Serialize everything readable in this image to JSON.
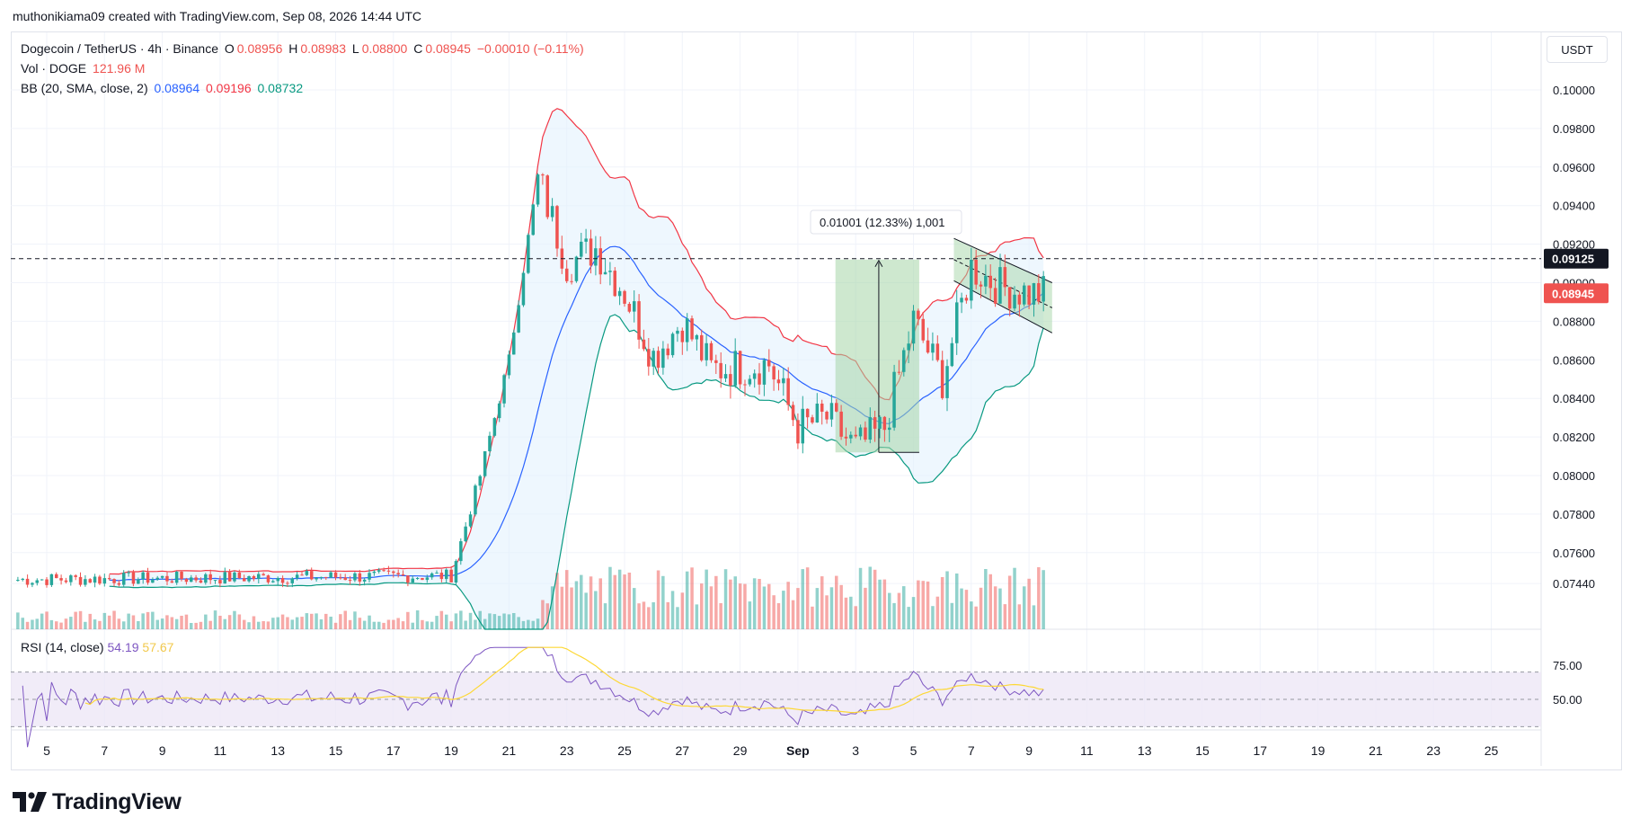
{
  "header": {
    "credit": "muthonikiama09 created with TradingView.com, Sep 08, 2026 14:44 UTC"
  },
  "legend": {
    "symbol": "Dogecoin / TetherUS · 4h · Binance",
    "ohlc": {
      "o_label": "O",
      "o": "0.08956",
      "h_label": "H",
      "h": "0.08983",
      "l_label": "L",
      "l": "0.08800",
      "c_label": "C",
      "c": "0.08945",
      "change": "−0.00010 (−0.11%)"
    },
    "volume": {
      "label": "Vol · DOGE",
      "value": "121.96 M"
    },
    "bb": {
      "label": "BB (20, SMA, close, 2)",
      "basis": "0.08964",
      "upper": "0.09196",
      "lower": "0.08732"
    },
    "rsi": {
      "label": "RSI (14, close)",
      "value": "54.19",
      "ma": "57.67"
    }
  },
  "price_axis": {
    "unit": "USDT",
    "last_price_label": "0.08945",
    "crosshair_label": "0.09125"
  },
  "measure_tool": {
    "label": "0.01001 (12.33%) 1,001"
  },
  "colors": {
    "up": "#26a69a",
    "down": "#ef5350",
    "bb_basis": "#2962ff",
    "bb_upper": "#f23645",
    "bb_lower": "#089981",
    "bb_fill": "#e3f2fd",
    "rsi": "#7e57c2",
    "rsi_ma": "#fdd835",
    "rsi_band": "#ede7f6",
    "measure": "#a5d6a7"
  },
  "brand": {
    "name": "TradingView"
  },
  "chart_data": {
    "type": "candlestick",
    "timeframe": "4h",
    "symbol": "DOGEUSDT",
    "x_ticks": [
      "5",
      "7",
      "9",
      "11",
      "13",
      "15",
      "17",
      "19",
      "21",
      "23",
      "25",
      "27",
      "29",
      "Sep",
      "3",
      "5",
      "7",
      "9",
      "11",
      "13",
      "15",
      "17",
      "19",
      "21",
      "23",
      "25"
    ],
    "y_ticks": [
      "0.10000",
      "0.09800",
      "0.09600",
      "0.09400",
      "0.09200",
      "0.09000",
      "0.08800",
      "0.08600",
      "0.08400",
      "0.08200",
      "0.08000",
      "0.07800",
      "0.07600",
      "0.07440"
    ],
    "ylim": [
      0.0736,
      0.1025
    ],
    "rsi_ticks": [
      "75.00",
      "50.00"
    ],
    "rsi_levels": [
      70,
      50,
      30
    ],
    "key_points": [
      {
        "date": "2026-08-04",
        "close": 0.0746
      },
      {
        "date": "2026-08-19",
        "close": 0.0748
      },
      {
        "date": "2026-08-20",
        "close": 0.08
      },
      {
        "date": "2026-08-21",
        "close": 0.086
      },
      {
        "date": "2026-08-22",
        "close": 0.0955
      },
      {
        "date": "2026-08-23",
        "close": 0.091
      },
      {
        "date": "2026-08-24",
        "close": 0.0918
      },
      {
        "date": "2026-08-25",
        "close": 0.0895
      },
      {
        "date": "2026-08-26",
        "close": 0.0862
      },
      {
        "date": "2026-08-27",
        "close": 0.088
      },
      {
        "date": "2026-08-28",
        "close": 0.0855
      },
      {
        "date": "2026-08-30",
        "close": 0.0858
      },
      {
        "date": "2026-08-31",
        "close": 0.0825
      },
      {
        "date": "2026-09-01",
        "close": 0.083
      },
      {
        "date": "2026-09-02",
        "close": 0.0814
      },
      {
        "date": "2026-09-03",
        "close": 0.0825
      },
      {
        "date": "2026-09-04",
        "close": 0.088
      },
      {
        "date": "2026-09-05",
        "close": 0.085
      },
      {
        "date": "2026-09-06",
        "close": 0.0908
      },
      {
        "date": "2026-09-07",
        "close": 0.0898
      },
      {
        "date": "2026-09-08",
        "close": 0.08945
      }
    ]
  }
}
